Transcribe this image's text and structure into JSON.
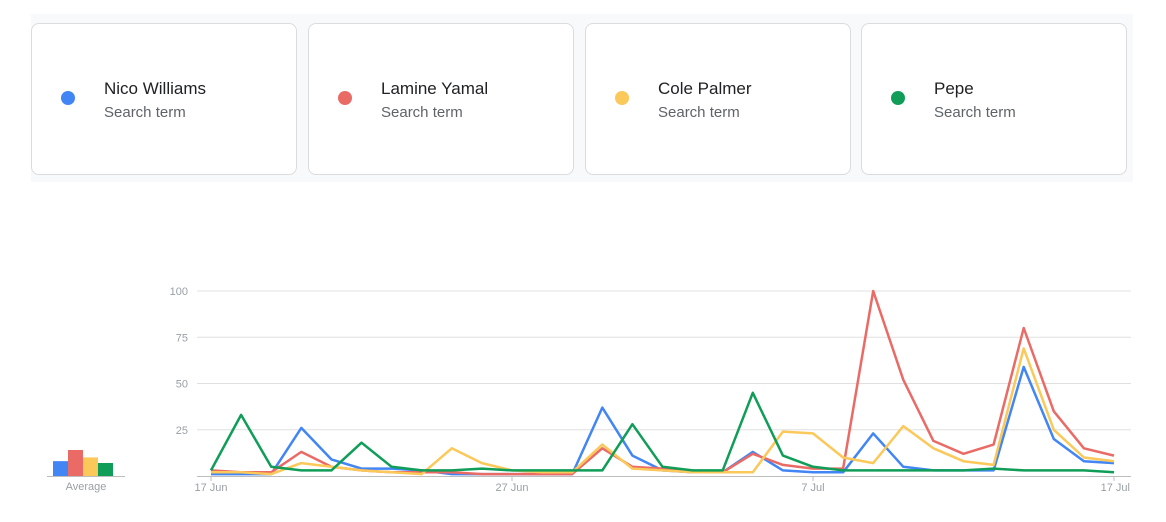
{
  "terms": [
    {
      "name": "Nico Williams",
      "subtitle": "Search term",
      "color": "#4285f4"
    },
    {
      "name": "Lamine Yamal",
      "subtitle": "Search term",
      "color": "#ea6b66"
    },
    {
      "name": "Cole Palmer",
      "subtitle": "Search term",
      "color": "#fbc85a"
    },
    {
      "name": "Pepe",
      "subtitle": "Search term",
      "color": "#0f9d58"
    }
  ],
  "average_label": "Average",
  "chart_data": {
    "type": "line",
    "x_tick_labels": [
      "17 Jun",
      "27 Jun",
      "7 Jul",
      "17 Jul"
    ],
    "x": [
      "17 Jun",
      "18 Jun",
      "19 Jun",
      "20 Jun",
      "21 Jun",
      "22 Jun",
      "23 Jun",
      "24 Jun",
      "25 Jun",
      "26 Jun",
      "27 Jun",
      "28 Jun",
      "29 Jun",
      "30 Jun",
      "1 Jul",
      "2 Jul",
      "3 Jul",
      "4 Jul",
      "5 Jul",
      "6 Jul",
      "7 Jul",
      "8 Jul",
      "9 Jul",
      "10 Jul",
      "11 Jul",
      "12 Jul",
      "13 Jul",
      "14 Jul",
      "15 Jul",
      "16 Jul",
      "17 Jul"
    ],
    "y_ticks": [
      25,
      50,
      75,
      100
    ],
    "ylim": [
      0,
      100
    ],
    "grid": true,
    "series": [
      {
        "name": "Nico Williams",
        "color": "#4285f4",
        "values": [
          1,
          1,
          1,
          26,
          9,
          4,
          4,
          3,
          1,
          1,
          1,
          1,
          1,
          37,
          11,
          3,
          2,
          2,
          13,
          3,
          2,
          2,
          23,
          5,
          3,
          3,
          3,
          59,
          20,
          8,
          7
        ],
        "average": 8
      },
      {
        "name": "Lamine Yamal",
        "color": "#ea6b66",
        "values": [
          3,
          2,
          2,
          13,
          5,
          3,
          2,
          2,
          2,
          1,
          1,
          1,
          1,
          15,
          5,
          4,
          2,
          2,
          12,
          6,
          4,
          4,
          100,
          52,
          19,
          12,
          17,
          80,
          35,
          15,
          11
        ],
        "average": 14
      },
      {
        "name": "Cole Palmer",
        "color": "#fbc85a",
        "values": [
          2,
          2,
          1,
          7,
          5,
          3,
          2,
          1,
          15,
          7,
          3,
          2,
          2,
          17,
          4,
          3,
          2,
          2,
          2,
          24,
          23,
          10,
          7,
          27,
          15,
          8,
          6,
          69,
          25,
          10,
          8
        ],
        "average": 10
      },
      {
        "name": "Pepe",
        "color": "#0f9d58",
        "values": [
          3,
          33,
          5,
          3,
          3,
          18,
          5,
          3,
          3,
          4,
          3,
          3,
          3,
          3,
          28,
          5,
          3,
          3,
          45,
          11,
          5,
          3,
          3,
          3,
          3,
          3,
          4,
          3,
          3,
          3,
          2
        ],
        "average": 7
      }
    ]
  }
}
